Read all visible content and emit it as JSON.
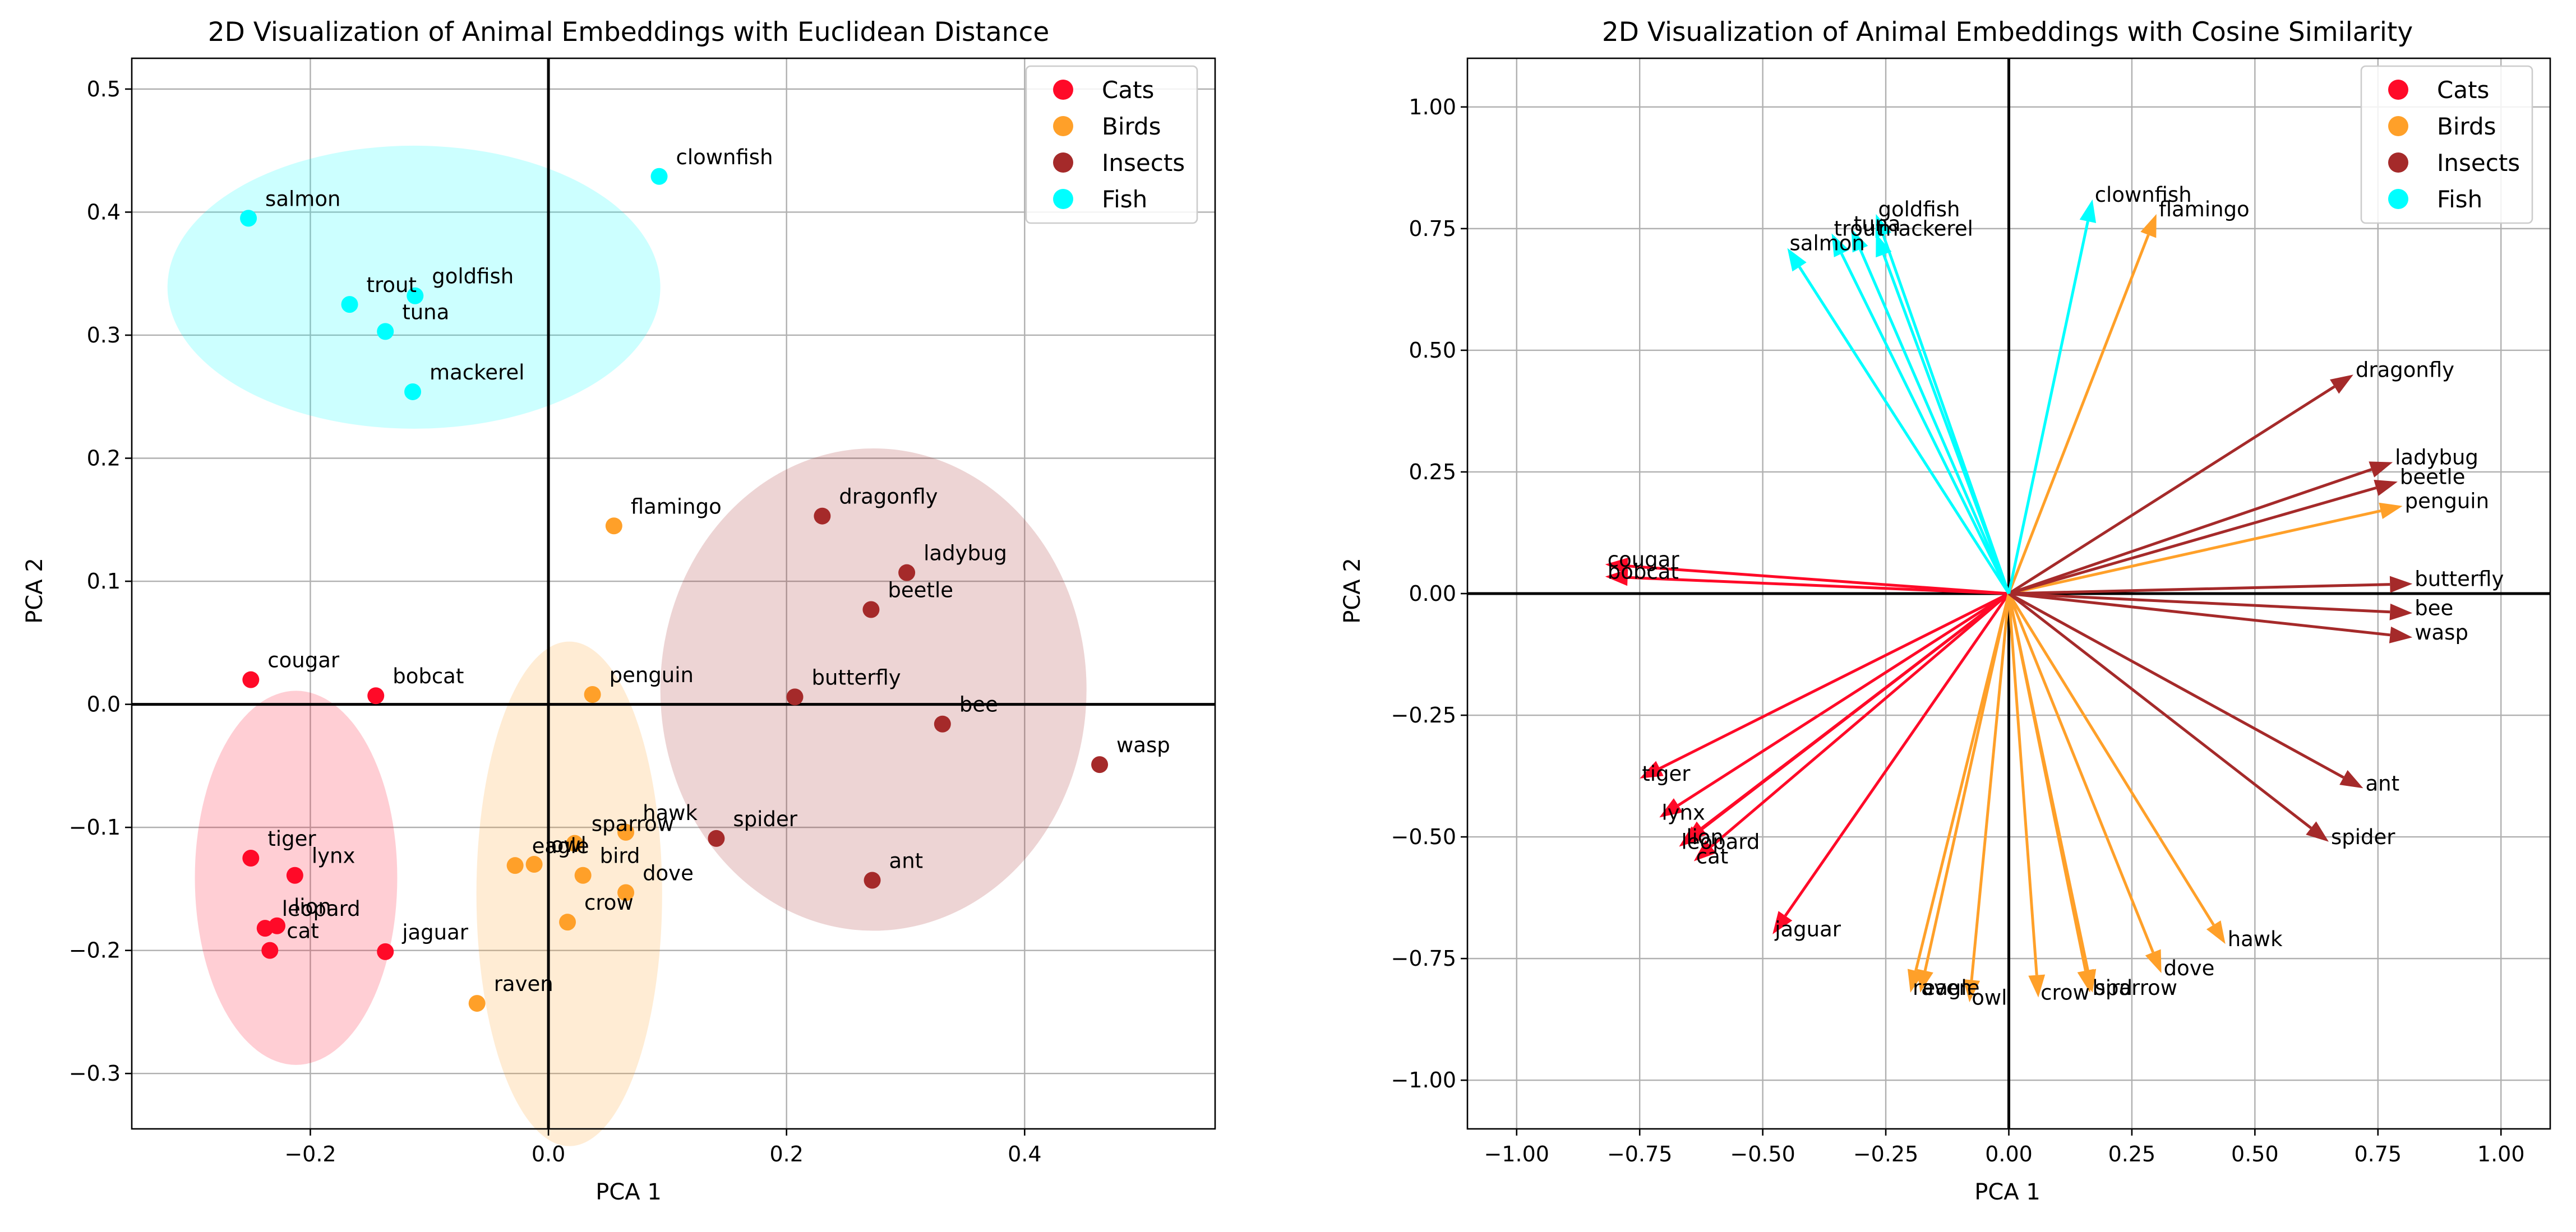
{
  "colors": {
    "Cats": "#ff0a28",
    "Birds": "#ffa029",
    "Insects": "#a52a2a",
    "Fish": "#00ffff",
    "grid": "#b0b0b0"
  },
  "chart_data": [
    {
      "type": "scatter",
      "title": "2D Visualization of Animal Embeddings with Euclidean Distance",
      "xlabel": "PCA 1",
      "ylabel": "PCA 2",
      "xlim": [
        -0.35,
        0.56
      ],
      "ylim": [
        -0.345,
        0.525
      ],
      "xticks": [
        -0.2,
        0.0,
        0.2,
        0.4
      ],
      "xtick_labels": [
        "−0.2",
        "0.0",
        "0.2",
        "0.4"
      ],
      "yticks": [
        -0.3,
        -0.2,
        -0.1,
        0.0,
        0.1,
        0.2,
        0.3,
        0.4,
        0.5
      ],
      "ytick_labels": [
        "−0.3",
        "−0.2",
        "−0.1",
        "0.0",
        "0.1",
        "0.2",
        "0.3",
        "0.4",
        "0.5"
      ],
      "grid": true,
      "legend": "top-right",
      "legend_entries": [
        "Cats",
        "Birds",
        "Insects",
        "Fish"
      ],
      "cluster_ellipses": [
        {
          "group": "Fish",
          "cx": -0.113,
          "cy": 0.339,
          "rx": 0.207,
          "ry": 0.115
        },
        {
          "group": "Cats",
          "cx": -0.212,
          "cy": -0.141,
          "rx": 0.085,
          "ry": 0.152
        },
        {
          "group": "Birds",
          "cx": 0.0175,
          "cy": -0.154,
          "rx": 0.078,
          "ry": 0.205
        },
        {
          "group": "Insects",
          "cx": 0.273,
          "cy": 0.012,
          "rx": 0.179,
          "ry": 0.196
        }
      ],
      "points": [
        {
          "label": "cougar",
          "group": "Cats",
          "x": -0.25,
          "y": 0.02
        },
        {
          "label": "bobcat",
          "group": "Cats",
          "x": -0.145,
          "y": 0.007
        },
        {
          "label": "tiger",
          "group": "Cats",
          "x": -0.25,
          "y": -0.125
        },
        {
          "label": "lynx",
          "group": "Cats",
          "x": -0.213,
          "y": -0.139
        },
        {
          "label": "leopard",
          "group": "Cats",
          "x": -0.238,
          "y": -0.182
        },
        {
          "label": "lion",
          "group": "Cats",
          "x": -0.228,
          "y": -0.18
        },
        {
          "label": "cat",
          "group": "Cats",
          "x": -0.234,
          "y": -0.2
        },
        {
          "label": "jaguar",
          "group": "Cats",
          "x": -0.137,
          "y": -0.201
        },
        {
          "label": "flamingo",
          "group": "Birds",
          "x": 0.055,
          "y": 0.145
        },
        {
          "label": "penguin",
          "group": "Birds",
          "x": 0.037,
          "y": 0.008
        },
        {
          "label": "hawk",
          "group": "Birds",
          "x": 0.065,
          "y": -0.104
        },
        {
          "label": "sparrow",
          "group": "Birds",
          "x": 0.022,
          "y": -0.113
        },
        {
          "label": "eagle",
          "group": "Birds",
          "x": -0.028,
          "y": -0.131
        },
        {
          "label": "owl",
          "group": "Birds",
          "x": -0.012,
          "y": -0.13
        },
        {
          "label": "bird",
          "group": "Birds",
          "x": 0.029,
          "y": -0.139
        },
        {
          "label": "dove",
          "group": "Birds",
          "x": 0.065,
          "y": -0.153
        },
        {
          "label": "crow",
          "group": "Birds",
          "x": 0.016,
          "y": -0.177
        },
        {
          "label": "raven",
          "group": "Birds",
          "x": -0.06,
          "y": -0.243
        },
        {
          "label": "dragonfly",
          "group": "Insects",
          "x": 0.23,
          "y": 0.153
        },
        {
          "label": "ladybug",
          "group": "Insects",
          "x": 0.301,
          "y": 0.107
        },
        {
          "label": "beetle",
          "group": "Insects",
          "x": 0.271,
          "y": 0.077
        },
        {
          "label": "butterfly",
          "group": "Insects",
          "x": 0.207,
          "y": 0.006
        },
        {
          "label": "bee",
          "group": "Insects",
          "x": 0.331,
          "y": -0.016
        },
        {
          "label": "wasp",
          "group": "Insects",
          "x": 0.463,
          "y": -0.049
        },
        {
          "label": "spider",
          "group": "Insects",
          "x": 0.141,
          "y": -0.109
        },
        {
          "label": "ant",
          "group": "Insects",
          "x": 0.272,
          "y": -0.143
        },
        {
          "label": "clownfish",
          "group": "Fish",
          "x": 0.093,
          "y": 0.429
        },
        {
          "label": "salmon",
          "group": "Fish",
          "x": -0.252,
          "y": 0.395
        },
        {
          "label": "trout",
          "group": "Fish",
          "x": -0.167,
          "y": 0.325
        },
        {
          "label": "goldfish",
          "group": "Fish",
          "x": -0.112,
          "y": 0.332
        },
        {
          "label": "tuna",
          "group": "Fish",
          "x": -0.137,
          "y": 0.303
        },
        {
          "label": "mackerel",
          "group": "Fish",
          "x": -0.114,
          "y": 0.254
        }
      ]
    },
    {
      "type": "quiver",
      "title": "2D Visualization of Animal Embeddings with Cosine Similarity",
      "xlabel": "PCA 1",
      "ylabel": "PCA 2",
      "xlim": [
        -1.1,
        1.1
      ],
      "ylim": [
        -1.1,
        1.1
      ],
      "xticks": [
        -1.0,
        -0.75,
        -0.5,
        -0.25,
        0.0,
        0.25,
        0.5,
        0.75,
        1.0
      ],
      "xtick_labels": [
        "−1.00",
        "−0.75",
        "−0.50",
        "−0.25",
        "0.00",
        "0.25",
        "0.50",
        "0.75",
        "1.00"
      ],
      "yticks": [
        -1.0,
        -0.75,
        -0.5,
        -0.25,
        0.0,
        0.25,
        0.5,
        0.75,
        1.0
      ],
      "ytick_labels": [
        "−1.00",
        "−0.75",
        "−0.50",
        "−0.25",
        "0.00",
        "0.25",
        "0.50",
        "0.75",
        "1.00"
      ],
      "grid": true,
      "legend": "top-right",
      "legend_entries": [
        "Cats",
        "Birds",
        "Insects",
        "Fish"
      ],
      "vectors": [
        {
          "label": "cougar",
          "group": "Cats",
          "x": -0.82,
          "y": 0.06
        },
        {
          "label": "bobcat",
          "group": "Cats",
          "x": -0.82,
          "y": 0.035
        },
        {
          "label": "tiger",
          "group": "Cats",
          "x": -0.75,
          "y": -0.38
        },
        {
          "label": "lynx",
          "group": "Cats",
          "x": -0.71,
          "y": -0.46
        },
        {
          "label": "leopard",
          "group": "Cats",
          "x": -0.67,
          "y": -0.52
        },
        {
          "label": "lion",
          "group": "Cats",
          "x": -0.66,
          "y": -0.51
        },
        {
          "label": "cat",
          "group": "Cats",
          "x": -0.64,
          "y": -0.55
        },
        {
          "label": "jaguar",
          "group": "Cats",
          "x": -0.48,
          "y": -0.7
        },
        {
          "label": "flamingo",
          "group": "Birds",
          "x": 0.3,
          "y": 0.78
        },
        {
          "label": "penguin",
          "group": "Birds",
          "x": 0.8,
          "y": 0.18
        },
        {
          "label": "hawk",
          "group": "Birds",
          "x": 0.44,
          "y": -0.72
        },
        {
          "label": "dove",
          "group": "Birds",
          "x": 0.31,
          "y": -0.78
        },
        {
          "label": "sparrow",
          "group": "Birds",
          "x": 0.17,
          "y": -0.82
        },
        {
          "label": "bird",
          "group": "Birds",
          "x": 0.165,
          "y": -0.82
        },
        {
          "label": "crow",
          "group": "Birds",
          "x": 0.06,
          "y": -0.83
        },
        {
          "label": "owl",
          "group": "Birds",
          "x": -0.08,
          "y": -0.84
        },
        {
          "label": "eagle",
          "group": "Birds",
          "x": -0.18,
          "y": -0.82
        },
        {
          "label": "raven",
          "group": "Birds",
          "x": -0.2,
          "y": -0.82
        },
        {
          "label": "dragonfly",
          "group": "Insects",
          "x": 0.7,
          "y": 0.45
        },
        {
          "label": "ladybug",
          "group": "Insects",
          "x": 0.78,
          "y": 0.27
        },
        {
          "label": "beetle",
          "group": "Insects",
          "x": 0.79,
          "y": 0.23
        },
        {
          "label": "butterfly",
          "group": "Insects",
          "x": 0.82,
          "y": 0.02
        },
        {
          "label": "bee",
          "group": "Insects",
          "x": 0.82,
          "y": -0.04
        },
        {
          "label": "wasp",
          "group": "Insects",
          "x": 0.82,
          "y": -0.09
        },
        {
          "label": "ant",
          "group": "Insects",
          "x": 0.72,
          "y": -0.4
        },
        {
          "label": "spider",
          "group": "Insects",
          "x": 0.65,
          "y": -0.51
        },
        {
          "label": "clownfish",
          "group": "Fish",
          "x": 0.17,
          "y": 0.81
        },
        {
          "label": "goldfish",
          "group": "Fish",
          "x": -0.27,
          "y": 0.78
        },
        {
          "label": "mackerel",
          "group": "Fish",
          "x": -0.27,
          "y": 0.74
        },
        {
          "label": "tuna",
          "group": "Fish",
          "x": -0.32,
          "y": 0.75
        },
        {
          "label": "trout",
          "group": "Fish",
          "x": -0.36,
          "y": 0.74
        },
        {
          "label": "salmon",
          "group": "Fish",
          "x": -0.45,
          "y": 0.71
        }
      ]
    }
  ]
}
